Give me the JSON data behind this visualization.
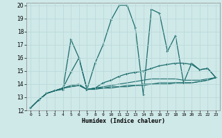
{
  "xlabel": "Humidex (Indice chaleur)",
  "ylabel": "",
  "bg_color": "#cfe8e8",
  "grid_color": "#b8d8d8",
  "line_color": "#1a6b6b",
  "xlim": [
    -0.5,
    23.5
  ],
  "ylim": [
    12,
    20.2
  ],
  "xticks": [
    0,
    1,
    2,
    3,
    4,
    5,
    6,
    7,
    8,
    9,
    10,
    11,
    12,
    13,
    14,
    15,
    16,
    17,
    18,
    19,
    20,
    21,
    22,
    23
  ],
  "yticks": [
    12,
    13,
    14,
    15,
    16,
    17,
    18,
    19,
    20
  ],
  "series": [
    [
      12.2,
      12.8,
      13.3,
      13.5,
      13.6,
      17.4,
      16.0,
      13.6,
      15.6,
      17.0,
      18.9,
      20.0,
      20.0,
      18.3,
      13.2,
      19.7,
      19.4,
      16.5,
      17.7,
      14.1,
      15.6,
      15.1,
      15.2,
      14.5
    ],
    [
      12.2,
      12.8,
      13.3,
      13.5,
      13.7,
      14.9,
      16.0,
      13.6,
      13.7,
      14.1,
      14.3,
      14.6,
      14.8,
      14.9,
      15.0,
      15.2,
      15.4,
      15.5,
      15.6,
      15.6,
      15.5,
      15.1,
      15.2,
      14.5
    ],
    [
      12.2,
      12.8,
      13.3,
      13.5,
      13.7,
      13.9,
      14.0,
      13.6,
      13.7,
      13.8,
      13.9,
      14.0,
      14.1,
      14.2,
      14.3,
      14.4,
      14.4,
      14.4,
      14.4,
      14.3,
      14.3,
      14.3,
      14.4,
      14.5
    ],
    [
      12.2,
      12.8,
      13.3,
      13.5,
      13.7,
      13.8,
      13.9,
      13.6,
      13.7,
      13.7,
      13.8,
      13.8,
      13.9,
      13.9,
      14.0,
      14.0,
      14.1,
      14.1,
      14.1,
      14.1,
      14.1,
      14.2,
      14.3,
      14.5
    ],
    [
      12.2,
      12.8,
      13.3,
      13.5,
      13.7,
      13.8,
      13.9,
      13.6,
      13.6,
      13.7,
      13.7,
      13.8,
      13.8,
      13.9,
      13.9,
      14.0,
      14.0,
      14.0,
      14.1,
      14.1,
      14.1,
      14.2,
      14.3,
      14.5
    ]
  ],
  "markers": [
    true,
    true,
    false,
    false,
    false
  ]
}
